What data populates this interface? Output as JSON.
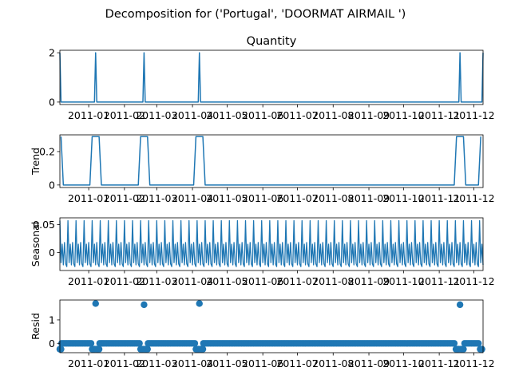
{
  "chart_data": {
    "title": "Decomposition for ('Portugal', 'DOORMAT AIRMAIL ')",
    "x_tick_labels": [
      "2011-01",
      "2011-02",
      "2011-03",
      "2011-04",
      "2011-05",
      "2011-06",
      "2011-07",
      "2011-08",
      "2011-09",
      "2011-10",
      "2011-11",
      "2011-12"
    ],
    "x_range": [
      "2010-12-07",
      "2011-12-09"
    ],
    "line_color": "#1f77b4",
    "panels": [
      {
        "key": "observed",
        "type": "line",
        "title": "Quantity",
        "ylabel": "",
        "ylim": [
          -0.1,
          2.1
        ],
        "yticks": [
          0,
          2
        ],
        "points": [
          [
            "2010-12-07",
            2
          ],
          [
            "2010-12-08",
            0
          ],
          [
            "2011-01-06",
            0
          ],
          [
            "2011-01-07",
            2
          ],
          [
            "2011-01-08",
            0
          ],
          [
            "2011-02-17",
            0
          ],
          [
            "2011-02-18",
            2
          ],
          [
            "2011-02-19",
            0
          ],
          [
            "2011-04-06",
            0
          ],
          [
            "2011-04-07",
            2
          ],
          [
            "2011-04-08",
            0
          ],
          [
            "2011-11-18",
            0
          ],
          [
            "2011-11-19",
            2
          ],
          [
            "2011-11-20",
            0
          ],
          [
            "2011-12-08",
            0
          ],
          [
            "2011-12-09",
            2
          ]
        ]
      },
      {
        "key": "trend",
        "type": "line",
        "title": "",
        "ylabel": "Trend",
        "ylim": [
          -0.015,
          0.3
        ],
        "yticks": [
          0.0,
          0.2
        ],
        "points": [
          [
            "2010-12-08",
            0.29
          ],
          [
            "2010-12-10",
            0
          ],
          [
            "2011-01-02",
            0
          ],
          [
            "2011-01-04",
            0.29
          ],
          [
            "2011-01-10",
            0.29
          ],
          [
            "2011-01-12",
            0
          ],
          [
            "2011-02-13",
            0
          ],
          [
            "2011-02-15",
            0.29
          ],
          [
            "2011-02-21",
            0.29
          ],
          [
            "2011-02-23",
            0
          ],
          [
            "2011-04-02",
            0
          ],
          [
            "2011-04-04",
            0.29
          ],
          [
            "2011-04-10",
            0.29
          ],
          [
            "2011-04-12",
            0
          ],
          [
            "2011-11-14",
            0
          ],
          [
            "2011-11-16",
            0.29
          ],
          [
            "2011-11-22",
            0.29
          ],
          [
            "2011-11-24",
            0
          ],
          [
            "2011-12-05",
            0
          ],
          [
            "2011-12-07",
            0.29
          ]
        ]
      },
      {
        "key": "seasonal",
        "type": "line",
        "title": "",
        "ylabel": "Seasonal",
        "ylim": [
          -0.032,
          0.062
        ],
        "yticks": [
          0.0,
          0.05
        ],
        "period_days": 7,
        "weekly_pattern": [
          0.057,
          -0.018,
          0.015,
          -0.022,
          0.018,
          -0.02,
          -0.025
        ]
      },
      {
        "key": "resid",
        "type": "scatter",
        "title": "",
        "ylabel": "Resid",
        "ylim": [
          -0.4,
          1.85
        ],
        "yticks": [
          0,
          1
        ],
        "baseline": 0,
        "dense_spacing_days": 1.5,
        "spikes": [
          {
            "date": "2011-01-07",
            "value": 1.7
          },
          {
            "date": "2011-02-18",
            "value": 1.65
          },
          {
            "date": "2011-04-07",
            "value": 1.7
          },
          {
            "date": "2011-11-19",
            "value": 1.65
          }
        ],
        "dips": [
          [
            "2010-12-07",
            -0.25
          ],
          [
            "2010-12-08",
            -0.25
          ],
          [
            "2011-01-04",
            -0.25
          ],
          [
            "2011-01-05",
            -0.25
          ],
          [
            "2011-01-06",
            -0.25
          ],
          [
            "2011-01-08",
            -0.25
          ],
          [
            "2011-01-09",
            -0.25
          ],
          [
            "2011-01-10",
            -0.25
          ],
          [
            "2011-02-15",
            -0.25
          ],
          [
            "2011-02-16",
            -0.25
          ],
          [
            "2011-02-17",
            -0.25
          ],
          [
            "2011-02-19",
            -0.25
          ],
          [
            "2011-02-20",
            -0.25
          ],
          [
            "2011-02-21",
            -0.25
          ],
          [
            "2011-04-04",
            -0.25
          ],
          [
            "2011-04-05",
            -0.25
          ],
          [
            "2011-04-06",
            -0.25
          ],
          [
            "2011-04-08",
            -0.25
          ],
          [
            "2011-04-09",
            -0.25
          ],
          [
            "2011-04-10",
            -0.25
          ],
          [
            "2011-11-16",
            -0.25
          ],
          [
            "2011-11-17",
            -0.25
          ],
          [
            "2011-11-18",
            -0.25
          ],
          [
            "2011-11-20",
            -0.25
          ],
          [
            "2011-11-21",
            -0.25
          ],
          [
            "2011-11-22",
            -0.25
          ],
          [
            "2011-12-07",
            -0.25
          ],
          [
            "2011-12-08",
            -0.25
          ]
        ]
      }
    ]
  }
}
